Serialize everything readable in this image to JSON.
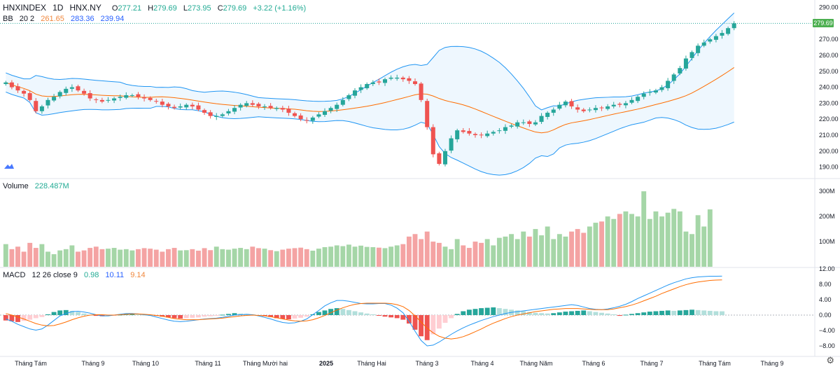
{
  "header": {
    "symbol": "HNXINDEX",
    "interval": "1D",
    "exchange": "HNX.NY",
    "open_label": "O",
    "open": "277.21",
    "high_label": "H",
    "high": "279.69",
    "low_label": "L",
    "low": "273.95",
    "close_label": "C",
    "close": "279.69",
    "change": "+3.22 (+1.16%)"
  },
  "bb_legend": {
    "name": "BB",
    "params": "20 2",
    "basis": "261.65",
    "upper": "283.36",
    "lower": "239.94"
  },
  "volume_legend": {
    "name": "Volume",
    "value": "228.487M"
  },
  "macd_legend": {
    "name": "MACD",
    "params": "12 26 close 9",
    "hist": "0.98",
    "macd": "10.11",
    "signal": "9.14"
  },
  "last_price_tag": "279.69",
  "colors": {
    "up": "#26a69a",
    "down": "#ef5350",
    "bb_band": "#2196f3",
    "basis": "#ff6d00",
    "macd_line": "#2196f3",
    "signal_line": "#ff6d00"
  },
  "chart_data": {
    "type": "candlestick",
    "price_axis_ticks": [
      "290.00",
      "280.00",
      "270.00",
      "260.00",
      "250.00",
      "240.00",
      "230.00",
      "220.00",
      "210.00",
      "200.00",
      "190.00"
    ],
    "volume_axis_ticks": [
      "300M",
      "200M",
      "100M"
    ],
    "macd_axis_ticks": [
      "12.00",
      "8.00",
      "4.00",
      "0.00",
      "−4.00",
      "−8.00"
    ],
    "time_labels": [
      "Tháng Tám",
      "Tháng 9",
      "Tháng 10",
      "Tháng 11",
      "Tháng Mười hai",
      "2025",
      "Tháng Hai",
      "Tháng 3",
      "Tháng 4",
      "Tháng Năm",
      "Tháng 6",
      "Tháng 7",
      "Tháng Tám",
      "Tháng 9"
    ],
    "price_ylim": [
      185,
      292
    ],
    "volume_ylim": [
      0,
      320
    ],
    "macd_ylim": [
      -10,
      12
    ],
    "close_series": [
      243,
      240,
      238,
      236,
      232,
      225,
      228,
      232,
      234,
      237,
      239,
      240,
      238,
      236,
      233,
      232,
      231,
      232,
      233,
      234,
      235,
      235,
      234,
      233,
      232,
      231,
      229,
      228,
      227,
      228,
      229,
      228,
      226,
      224,
      222,
      222,
      223,
      225,
      227,
      229,
      230,
      229,
      228,
      228,
      227,
      227,
      226,
      224,
      222,
      220,
      219,
      221,
      223,
      225,
      227,
      229,
      232,
      235,
      238,
      240,
      242,
      243,
      243,
      245,
      246,
      246,
      245,
      244,
      242,
      232,
      215,
      198,
      192,
      200,
      208,
      213,
      212,
      211,
      210,
      210,
      211,
      212,
      213,
      215,
      216,
      218,
      218,
      217,
      218,
      222,
      224,
      226,
      229,
      231,
      228,
      226,
      225,
      226,
      227,
      227,
      228,
      229,
      229,
      230,
      232,
      234,
      236,
      237,
      238,
      240,
      244,
      248,
      252,
      258,
      262,
      266,
      268,
      270,
      272,
      274,
      277,
      280
    ],
    "volume_series": [
      90,
      70,
      80,
      60,
      95,
      75,
      90,
      60,
      50,
      65,
      70,
      85,
      60,
      65,
      75,
      80,
      70,
      72,
      75,
      68,
      70,
      65,
      70,
      74,
      72,
      68,
      60,
      70,
      75,
      65,
      66,
      70,
      64,
      74,
      66,
      80,
      70,
      68,
      72,
      75,
      70,
      80,
      74,
      72,
      66,
      62,
      68,
      72,
      74,
      76,
      70,
      64,
      72,
      78,
      80,
      85,
      82,
      88,
      80,
      84,
      79,
      78,
      76,
      74,
      80,
      85,
      90,
      120,
      130,
      110,
      140,
      100,
      95,
      80,
      70,
      110,
      85,
      75,
      100,
      95,
      110,
      85,
      115,
      120,
      130,
      110,
      140,
      120,
      150,
      125,
      160,
      110,
      130,
      120,
      140,
      150,
      135,
      160,
      175,
      180,
      200,
      190,
      210,
      220,
      210,
      200,
      300,
      190,
      220,
      200,
      215,
      230,
      220,
      140,
      130,
      205,
      160,
      228
    ],
    "hist_series": [
      -1.4,
      -1.6,
      -1.8,
      -1.5,
      -1.2,
      -0.8,
      -0.5,
      0.2,
      0.8,
      1.2,
      1.3,
      1.1,
      0.8,
      0.4,
      0.1,
      -0.2,
      -0.3,
      -0.2,
      -0.1,
      0.1,
      0.2,
      0.3,
      0.2,
      0.1,
      0.0,
      -0.2,
      -0.4,
      -0.6,
      -0.8,
      -0.9,
      -0.8,
      -0.7,
      -0.6,
      -0.4,
      -0.3,
      -0.2,
      0.1,
      0.3,
      0.5,
      0.4,
      0.3,
      0.2,
      0.0,
      -0.3,
      -0.5,
      -0.8,
      -1.0,
      -1.1,
      -0.9,
      -0.7,
      -0.4,
      0.2,
      0.8,
      1.2,
      1.6,
      1.8,
      1.6,
      1.3,
      1.0,
      0.7,
      0.4,
      0.2,
      -0.1,
      -0.4,
      -0.6,
      -0.8,
      -1.2,
      -2.2,
      -3.8,
      -5.5,
      -6.5,
      -5.0,
      -3.5,
      -2.0,
      -0.8,
      0.3,
      1.0,
      1.4,
      1.6,
      1.8,
      1.9,
      2.0,
      1.8,
      1.6,
      1.4,
      1.2,
      1.0,
      0.8,
      0.6,
      0.5,
      0.4,
      0.5,
      0.7,
      0.9,
      1.0,
      1.1,
      1.2,
      1.0,
      0.8,
      0.6,
      0.4,
      0.2,
      -0.2,
      0.1,
      0.3,
      0.5,
      0.7,
      0.9,
      1.0,
      1.1,
      1.2,
      1.1,
      1.2,
      1.3,
      1.4,
      1.3,
      1.2,
      1.1,
      1.0,
      0.98
    ],
    "macd_series": [
      -1.0,
      -1.6,
      -2.4,
      -3.0,
      -3.6,
      -3.9,
      -3.6,
      -2.6,
      -1.4,
      -0.2,
      0.4,
      0.9,
      1.0,
      0.8,
      0.5,
      0.1,
      -0.2,
      -0.2,
      0.0,
      0.2,
      0.4,
      0.4,
      0.3,
      0.1,
      -0.1,
      -0.5,
      -0.9,
      -1.3,
      -1.6,
      -1.7,
      -1.6,
      -1.4,
      -1.2,
      -1.0,
      -0.9,
      -0.8,
      -0.6,
      -0.3,
      0.0,
      0.1,
      0.2,
      0.1,
      -0.2,
      -0.6,
      -1.0,
      -1.5,
      -1.9,
      -2.1,
      -2.0,
      -1.6,
      -1.0,
      0.1,
      1.2,
      2.4,
      3.2,
      3.8,
      3.8,
      3.6,
      3.3,
      3.0,
      2.9,
      2.9,
      3.0,
      3.0,
      2.6,
      1.8,
      0.6,
      -1.6,
      -4.2,
      -6.6,
      -8.0,
      -7.8,
      -7.0,
      -6.0,
      -5.0,
      -4.1,
      -3.3,
      -2.6,
      -2.0,
      -1.4,
      -0.9,
      -0.4,
      0.0,
      0.4,
      0.7,
      0.9,
      1.1,
      1.3,
      1.5,
      1.7,
      1.9,
      2.1,
      2.3,
      2.5,
      2.7,
      2.5,
      2.1,
      1.7,
      1.5,
      1.4,
      1.6,
      1.9,
      2.3,
      2.8,
      3.5,
      4.3,
      5.0,
      5.7,
      6.4,
      7.1,
      7.8,
      8.4,
      8.9,
      9.4,
      9.7,
      9.9,
      10.0,
      10.1,
      10.1,
      10.11
    ],
    "signal_series": [
      0.4,
      0.0,
      -0.5,
      -1.0,
      -1.6,
      -2.2,
      -2.6,
      -2.8,
      -2.7,
      -2.3,
      -1.8,
      -1.2,
      -0.7,
      -0.3,
      0.0,
      0.1,
      0.1,
      0.0,
      0.0,
      0.1,
      0.2,
      0.3,
      0.3,
      0.2,
      0.1,
      -0.1,
      -0.3,
      -0.6,
      -0.9,
      -1.1,
      -1.2,
      -1.2,
      -1.2,
      -1.1,
      -1.0,
      -0.9,
      -0.8,
      -0.6,
      -0.4,
      -0.2,
      -0.1,
      0.0,
      -0.1,
      -0.2,
      -0.4,
      -0.7,
      -1.0,
      -1.3,
      -1.5,
      -1.6,
      -1.5,
      -1.2,
      -0.7,
      -0.1,
      0.6,
      1.3,
      1.9,
      2.4,
      2.8,
      3.0,
      3.1,
      3.1,
      3.1,
      3.1,
      3.0,
      2.7,
      2.2,
      1.2,
      -0.2,
      -1.8,
      -3.4,
      -4.6,
      -5.5,
      -6.0,
      -6.2,
      -6.0,
      -5.6,
      -5.0,
      -4.3,
      -3.6,
      -2.8,
      -2.1,
      -1.5,
      -0.9,
      -0.4,
      0.0,
      0.3,
      0.6,
      0.9,
      1.1,
      1.3,
      1.5,
      1.6,
      1.7,
      1.7,
      1.7,
      1.6,
      1.5,
      1.4,
      1.4,
      1.4,
      1.6,
      1.9,
      2.2,
      2.6,
      3.1,
      3.7,
      4.3,
      4.9,
      5.6,
      6.2,
      6.8,
      7.4,
      7.9,
      8.3,
      8.6,
      8.8,
      9.0,
      9.1,
      9.14
    ]
  }
}
